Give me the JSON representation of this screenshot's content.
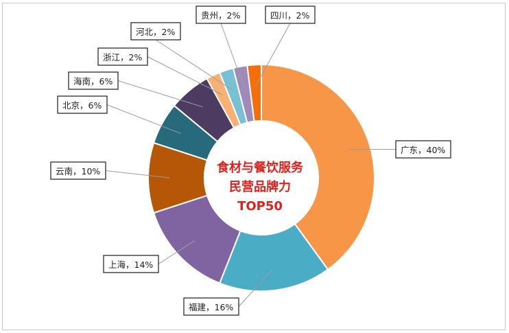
{
  "chart_data": {
    "type": "pie",
    "center_title": [
      "食材与餐饮服务",
      "民营品牌力",
      "TOP50"
    ],
    "slices": [
      {
        "label": "广东",
        "value": 40,
        "display": "广东，40%",
        "color": "#F79646"
      },
      {
        "label": "福建",
        "value": 16,
        "display": "福建，16%",
        "color": "#4BACC6"
      },
      {
        "label": "上海",
        "value": 14,
        "display": "上海，14%",
        "color": "#8064A2"
      },
      {
        "label": "云南",
        "value": 10,
        "display": "云南，10%",
        "color": "#B65708"
      },
      {
        "label": "北京",
        "value": 6,
        "display": "北京，6%",
        "color": "#276A7C"
      },
      {
        "label": "海南",
        "value": 6,
        "display": "海南，6%",
        "color": "#4D3B62"
      },
      {
        "label": "浙江",
        "value": 2,
        "display": "浙江，2%",
        "color": "#F9B074"
      },
      {
        "label": "河北",
        "value": 2,
        "display": "河北，2%",
        "color": "#78C0D4"
      },
      {
        "label": "贵州",
        "value": 2,
        "display": "贵州，2%",
        "color": "#9F8AB9"
      },
      {
        "label": "四川",
        "value": 2,
        "display": "四川，2%",
        "color": "#F46F0A"
      }
    ]
  }
}
